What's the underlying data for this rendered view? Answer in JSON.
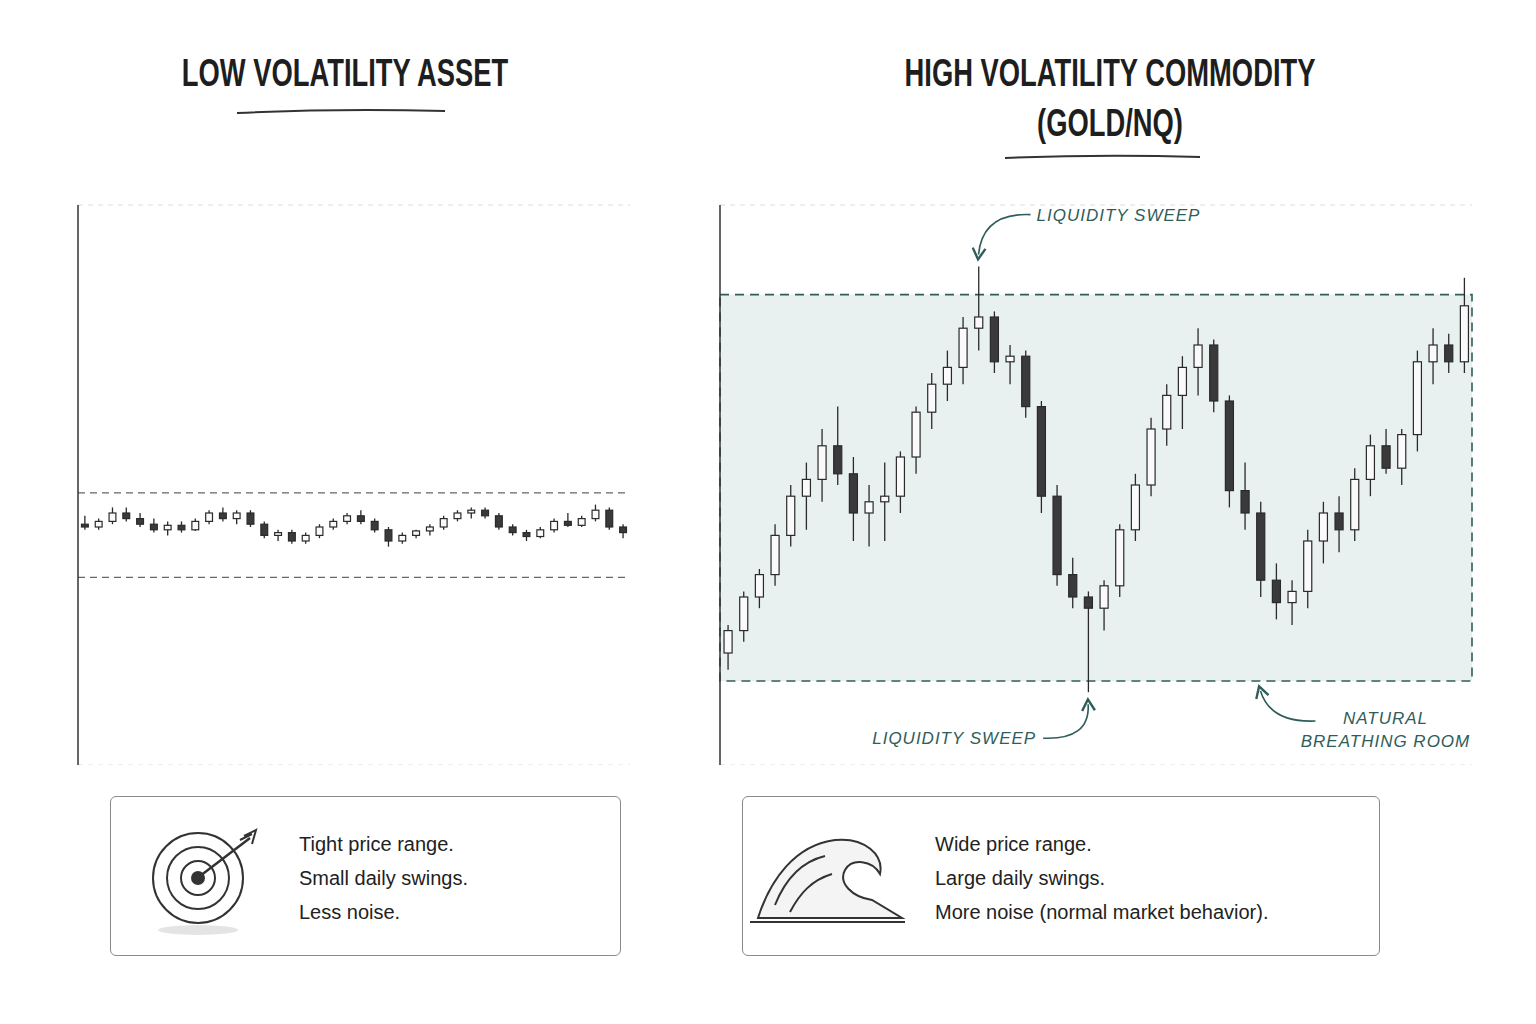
{
  "chart_data": [
    {
      "type": "candlestick",
      "title": [
        "LOW VOLATILITY ASSET"
      ],
      "open": [
        43,
        42.5,
        43.5,
        45,
        44,
        43,
        42,
        42.8,
        42,
        43.5,
        45,
        44,
        45,
        43,
        41,
        41.5,
        40,
        41,
        42.5,
        43.5,
        44.5,
        43.5,
        42,
        40,
        41,
        41.8,
        42.5,
        44,
        45,
        45.5,
        44.5,
        42.5,
        41.5,
        40.8,
        42,
        43.5,
        42.8,
        44,
        45.5,
        42.5
      ],
      "high": [
        44.5,
        44,
        46,
        46,
        45,
        44,
        43.5,
        43.5,
        44,
        45.5,
        46,
        45.5,
        45.5,
        43.5,
        42,
        42,
        41.5,
        43,
        44,
        45,
        45.5,
        44,
        42.5,
        41.5,
        42,
        43,
        44.5,
        45.5,
        46,
        46,
        45,
        43,
        42,
        42.5,
        44,
        45,
        44.5,
        46.5,
        46,
        43
      ],
      "low": [
        42,
        42,
        43,
        43.5,
        42.5,
        41.5,
        41,
        41.5,
        41.8,
        43,
        43.5,
        43,
        42.5,
        40.5,
        40,
        39.5,
        39.5,
        40.5,
        42,
        43,
        43,
        41.5,
        39,
        39.5,
        40.5,
        41,
        42,
        43.5,
        44,
        44,
        42,
        41,
        40,
        40.5,
        41.5,
        42.5,
        42.5,
        43.5,
        42,
        40.5
      ],
      "close": [
        42.5,
        43.5,
        45,
        44,
        43,
        42,
        42.8,
        42,
        43.5,
        45,
        44,
        45,
        43,
        41,
        41.5,
        40,
        41,
        42.5,
        43.5,
        44.5,
        43.5,
        42,
        40,
        41,
        41.8,
        42.5,
        44,
        45,
        45.5,
        44.5,
        42.5,
        41.5,
        40.8,
        42,
        43.5,
        42.8,
        44,
        45.5,
        42.5,
        41.5
      ],
      "range": [
        33.5,
        48.6
      ],
      "ylim": [
        0,
        100
      ],
      "yticks": [
        0,
        20,
        40,
        60,
        80,
        100
      ],
      "grid": true,
      "tick_labels": false,
      "description": [
        "Tight price range.",
        "Small daily swings.",
        "Less noise."
      ]
    },
    {
      "type": "candlestick",
      "title": [
        "HIGH VOLATILITY COMMODITY",
        "(GOLD/NQ)"
      ],
      "open": [
        20,
        24,
        30,
        34,
        41,
        48,
        51,
        57,
        52,
        45,
        47,
        48,
        55,
        63,
        68,
        71,
        78,
        80,
        72,
        73,
        64,
        48,
        34,
        30,
        28,
        32,
        42,
        50,
        60,
        66,
        71,
        75,
        65,
        49,
        45,
        33,
        29,
        31,
        40,
        45,
        42,
        51,
        57,
        53,
        59,
        72,
        75,
        72
      ],
      "high": [
        25,
        31,
        35,
        43,
        50,
        54,
        60,
        64,
        55,
        50,
        54,
        56,
        64,
        70,
        74,
        80,
        89,
        81,
        75,
        74,
        65,
        50,
        37,
        31,
        33,
        43,
        52,
        62,
        68,
        73,
        78,
        76,
        66,
        54,
        47,
        36,
        33,
        42,
        47,
        48,
        53,
        59,
        60,
        60,
        74,
        78,
        77,
        87
      ],
      "low": [
        17,
        22,
        28,
        32,
        39,
        42,
        47,
        50,
        40,
        39,
        40,
        45,
        52,
        60,
        65,
        68,
        74,
        70,
        68,
        62,
        45,
        32,
        28,
        13,
        24,
        30,
        40,
        48,
        57,
        60,
        66,
        63,
        46,
        42,
        30,
        26,
        25,
        28,
        36,
        38,
        40,
        48,
        52,
        50,
        56,
        68,
        70,
        70
      ],
      "close": [
        24,
        30,
        34,
        41,
        48,
        51,
        57,
        52,
        45,
        47,
        48,
        55,
        63,
        68,
        71,
        78,
        80,
        72,
        73,
        64,
        48,
        34,
        30,
        28,
        32,
        42,
        50,
        60,
        66,
        71,
        75,
        65,
        49,
        45,
        33,
        29,
        31,
        40,
        45,
        42,
        51,
        57,
        53,
        59,
        72,
        75,
        72,
        82
      ],
      "range": [
        15,
        84
      ],
      "range_label": [
        "NATURAL",
        "BREATHING ROOM"
      ],
      "sweeps": [
        {
          "text": "LIQUIDITY SWEEP",
          "index": 16,
          "at": "high"
        },
        {
          "text": "LIQUIDITY SWEEP",
          "index": 23,
          "at": "low"
        }
      ],
      "ylim": [
        0,
        100
      ],
      "yticks": [
        0,
        20,
        40,
        60,
        80,
        100
      ],
      "grid": true,
      "tick_labels": false,
      "description": [
        "Wide price range.",
        "Large daily swings.",
        "More noise (normal market behavior)."
      ]
    }
  ]
}
